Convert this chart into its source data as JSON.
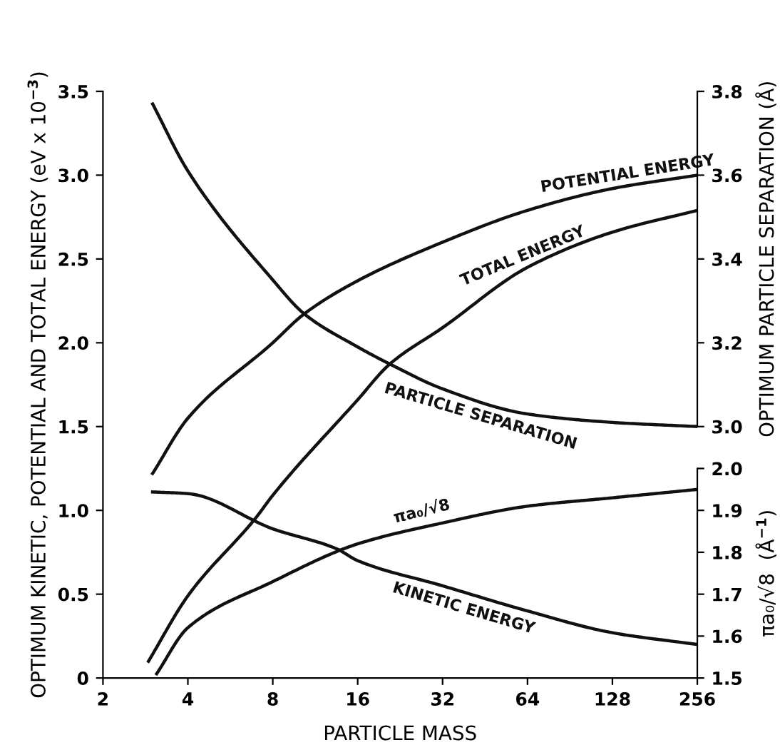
{
  "chart_data": {
    "type": "line",
    "xlabel": "PARTICLE MASS",
    "ylabel": "OPTIMUM KINETIC, POTENTIAL AND TOTAL ENERGY (eV x 10$^{−3}$)",
    "y2label": "OPTIMUM PARTICLE SEPARATION (Å)",
    "y3label": "πa₀/√8  (Å$^{−1}$)",
    "log": "x",
    "xlim": [
      2,
      256
    ],
    "xticks": [
      2,
      4,
      8,
      16,
      32,
      64,
      128,
      256
    ],
    "ylim": [
      0,
      3.5
    ],
    "yticks": [
      0,
      0.5,
      {
        "value": 1,
        "label": "1.0"
      },
      1.5,
      {
        "value": 2,
        "label": "2.0"
      },
      2.5,
      {
        "value": 3,
        "label": "3.0"
      },
      3.5
    ],
    "y2lim": [
      2.4,
      3.8
    ],
    "y2ticks": [
      {
        "value": 3,
        "label": "3.0"
      },
      3.2,
      3.4,
      3.6,
      3.8
    ],
    "y3lim": [
      1.5,
      2.9
    ],
    "y3ticks": [
      1.5,
      1.6,
      1.7,
      1.8,
      1.9,
      {
        "value": 2,
        "label": "2.0"
      }
    ],
    "grid": false,
    "legend": false,
    "marker": "none",
    "line_style": "solid",
    "series": [
      {
        "name": "POTENTIAL ENERGY",
        "color": "#111111",
        "x": [
          3,
          4,
          8,
          10.3,
          16,
          32,
          64,
          128,
          256
        ],
        "values": [
          1.22,
          1.55,
          2.0,
          2.17,
          2.37,
          2.6,
          2.79,
          2.92,
          3.0
        ]
      },
      {
        "name": "TOTAL ENERGY",
        "color": "#111111",
        "x": [
          2.9,
          4,
          7,
          8,
          16,
          20.7,
          32,
          64,
          128,
          256
        ],
        "values": [
          0.1,
          0.49,
          0.96,
          1.09,
          1.66,
          1.87,
          2.09,
          2.45,
          2.66,
          2.79
        ]
      },
      {
        "name": "KINETIC ENERGY",
        "color": "#111111",
        "x": [
          3,
          4,
          8,
          13.5,
          16,
          32,
          64,
          128,
          256
        ],
        "values": [
          1.11,
          1.1,
          0.89,
          0.77,
          0.7,
          0.55,
          0.4,
          0.27,
          0.2
        ]
      },
      {
        "name": "PARTICLE SEPARATION",
        "color": "#111111",
        "axis": "y2",
        "x": [
          3,
          4,
          8,
          10.3,
          16,
          20.7,
          32,
          64,
          128,
          256
        ],
        "values": [
          3.77,
          3.61,
          3.35,
          3.27,
          3.19,
          3.15,
          3.09,
          3.03,
          3.01,
          3.0
        ]
      },
      {
        "name": "πa₀/√8",
        "color": "#111111",
        "axis": "y3",
        "x": [
          3.1,
          4,
          8,
          16,
          32,
          64,
          128,
          256
        ],
        "values": [
          1.51,
          1.62,
          1.73,
          1.82,
          1.87,
          1.91,
          1.93,
          1.95
        ]
      }
    ]
  }
}
